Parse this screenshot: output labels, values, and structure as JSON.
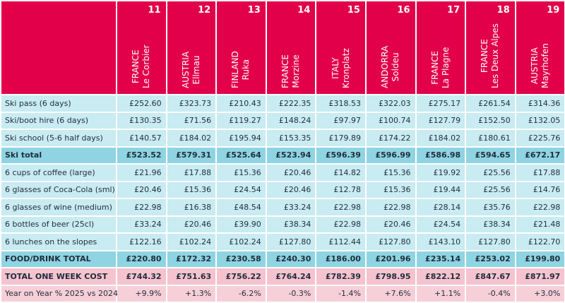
{
  "columns": [
    {
      "rank": "11",
      "country": "FRANCE",
      "resort": "Le Corbier"
    },
    {
      "rank": "12",
      "country": "AUSTRIA",
      "resort": "Ellmau"
    },
    {
      "rank": "13",
      "country": "FINLAND",
      "resort": "Ruka"
    },
    {
      "rank": "14",
      "country": "FRANCE",
      "resort": "Morzine"
    },
    {
      "rank": "15",
      "country": "ITALY",
      "resort": "Kronplatz"
    },
    {
      "rank": "16",
      "country": "ANDORRA",
      "resort": "Soldeu"
    },
    {
      "rank": "17",
      "country": "FRANCE",
      "resort": "La Plagne"
    },
    {
      "rank": "18",
      "country": "FRANCE",
      "resort": "Les Deux Alpes"
    },
    {
      "rank": "19",
      "country": "AUSTRIA",
      "resort": "Mayrhofen"
    }
  ],
  "rows": [
    {
      "label": "Ski pass (6 days)",
      "type": "item",
      "values": [
        "£252.60",
        "£323.73",
        "£210.43",
        "£222.35",
        "£318.53",
        "£322.03",
        "£275.17",
        "£261.54",
        "£314.36"
      ]
    },
    {
      "label": "Ski/boot hire (6 days)",
      "type": "item",
      "values": [
        "£130.35",
        "£71.56",
        "£119.27",
        "£148.24",
        "£97.97",
        "£100.74",
        "£127.79",
        "£152.50",
        "£132.05"
      ]
    },
    {
      "label": "Ski school (5-6 half days)",
      "type": "item",
      "values": [
        "£140.57",
        "£184.02",
        "£195.94",
        "£153.35",
        "£179.89",
        "£174.22",
        "£184.02",
        "£180.61",
        "£225.76"
      ]
    },
    {
      "label": "Ski total",
      "type": "sub",
      "values": [
        "£523.52",
        "£579.31",
        "£525.64",
        "£523.94",
        "£596.39",
        "£596.99",
        "£586.98",
        "£594.65",
        "£672.17"
      ]
    },
    {
      "label": "6 cups of coffee (large)",
      "type": "item",
      "values": [
        "£21.96",
        "£17.88",
        "£15.36",
        "£20.46",
        "£14.82",
        "£15.36",
        "£19.92",
        "£25.56",
        "£17.88"
      ]
    },
    {
      "label": "6 glasses of Coca-Cola (sml)",
      "type": "item",
      "values": [
        "£20.46",
        "£15.36",
        "£24.54",
        "£20.46",
        "£12.78",
        "£15.36",
        "£19.44",
        "£25.56",
        "£14.76"
      ]
    },
    {
      "label": "6 glasses of wine (medium)",
      "type": "item",
      "values": [
        "£22.98",
        "£16.38",
        "£48.54",
        "£33.24",
        "£22.98",
        "£22.98",
        "£28.14",
        "£35.76",
        "£22.98"
      ]
    },
    {
      "label": "6 bottles of beer (25cl)",
      "type": "item",
      "values": [
        "£33.24",
        "£20.46",
        "£39.90",
        "£38.34",
        "£22.98",
        "£20.46",
        "£24.54",
        "£38.34",
        "£21.48"
      ]
    },
    {
      "label": "6 lunches on the slopes",
      "type": "item",
      "values": [
        "£122.16",
        "£102.24",
        "£102.24",
        "£127.80",
        "£112.44",
        "£127.80",
        "£143.10",
        "£127.80",
        "£122.70"
      ]
    },
    {
      "label": "FOOD/DRINK TOTAL",
      "type": "sub",
      "values": [
        "£220.80",
        "£172.32",
        "£230.58",
        "£240.30",
        "£186.00",
        "£201.96",
        "£235.14",
        "£253.02",
        "£199.80"
      ]
    },
    {
      "label": "TOTAL ONE WEEK COST",
      "type": "total",
      "values": [
        "£744.32",
        "£751.63",
        "£756.22",
        "£764.24",
        "£782.39",
        "£798.95",
        "£822.12",
        "£847.67",
        "£871.97"
      ]
    },
    {
      "label": "Year on Year % 2025 vs 2024",
      "type": "yoy",
      "values": [
        "+9.9%",
        "+1.3%",
        "-6.2%",
        "-0.3%",
        "-1.4%",
        "+7.6%",
        "+1.1%",
        "-0.4%",
        "+3.0%"
      ]
    }
  ],
  "colors": {
    "header": "#e2004b",
    "row": "#c9ebf2",
    "subtotal": "#8fd4e2",
    "total": "#f5c3cf",
    "yoy": "#f7cfd9"
  }
}
